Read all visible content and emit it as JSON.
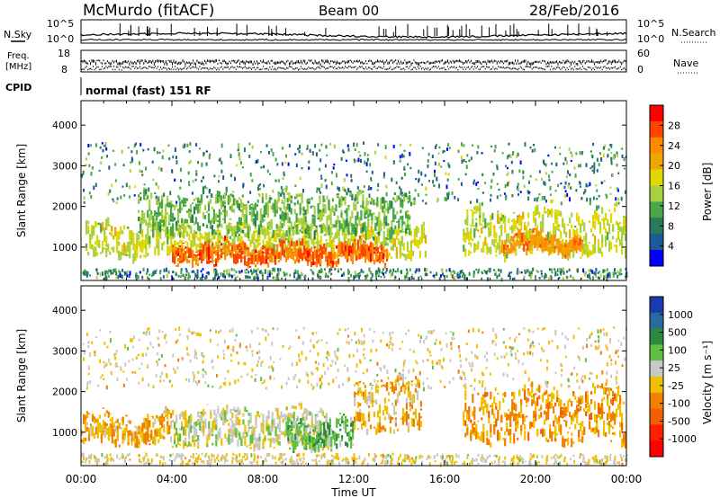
{
  "header": {
    "station": "McMurdo (fitACF)",
    "beam": "Beam 00",
    "date": "28/Feb/2016"
  },
  "panels": {
    "nsky": {
      "left_label": "N.Sky",
      "right_label": "N.Search",
      "left_ticks": [
        "10^5",
        "10^0"
      ],
      "right_ticks": [
        "10^5",
        "10^0"
      ]
    },
    "freq": {
      "left_label_1": "Freq.",
      "left_label_2": "[MHz]",
      "right_label": "Nave",
      "left_ticks": [
        "18",
        "8"
      ],
      "right_ticks": [
        "60",
        "0"
      ]
    },
    "cpid": {
      "label": "CPID",
      "value": "normal (fast) 151 RF"
    }
  },
  "power_colorbar": {
    "title": "Power [dB]",
    "ticks": [
      "28",
      "24",
      "20",
      "16",
      "12",
      "8",
      "4"
    ],
    "colors": [
      "#ff0000",
      "#ff4400",
      "#ff8c00",
      "#f0a500",
      "#e0d800",
      "#a8d040",
      "#48a848",
      "#2a7a5a",
      "#1c5a9a",
      "#0000ff"
    ]
  },
  "velocity_colorbar": {
    "title": "Velocity [m s⁻¹]",
    "ticks": [
      "1000",
      "500",
      "100",
      "25",
      "-25",
      "-100",
      "-500",
      "-1000"
    ],
    "colors": [
      "#1a3ab0",
      "#2a6aa0",
      "#2a8a40",
      "#60c040",
      "#c8c8c8",
      "#f0c000",
      "#f08000",
      "#f06000",
      "#ff2000",
      "#ff0000"
    ]
  },
  "chart_data": [
    {
      "type": "heatmap",
      "name": "power",
      "xlabel": "Time UT",
      "ylabel": "Slant Range [km]",
      "x_ticks": [
        "00:00",
        "04:00",
        "08:00",
        "12:00",
        "16:00",
        "20:00",
        "00:00"
      ],
      "y_ticks": [
        1000,
        2000,
        3000,
        4000
      ],
      "xlim_hours": [
        0,
        24
      ],
      "ylim_km": [
        180,
        4600
      ],
      "clim_db": [
        0,
        32
      ],
      "echo_regions": [
        {
          "t_start": 0.2,
          "t_end": 15.2,
          "r_min": 650,
          "r_max": 1450,
          "level_db": 16
        },
        {
          "t_start": 4.0,
          "t_end": 13.5,
          "r_min": 500,
          "r_max": 1000,
          "level_db": 27
        },
        {
          "t_start": 2.5,
          "t_end": 14.5,
          "r_min": 1200,
          "r_max": 2200,
          "level_db": 12
        },
        {
          "t_start": 16.8,
          "t_end": 24.0,
          "r_min": 700,
          "r_max": 1800,
          "level_db": 16
        },
        {
          "t_start": 18.5,
          "t_end": 22.0,
          "r_min": 800,
          "r_max": 1200,
          "level_db": 24
        }
      ]
    },
    {
      "type": "heatmap",
      "name": "velocity",
      "xlabel": "Time UT",
      "ylabel": "Slant Range [km]",
      "x_ticks": [
        "00:00",
        "04:00",
        "08:00",
        "12:00",
        "16:00",
        "20:00",
        "00:00"
      ],
      "y_ticks": [
        1000,
        2000,
        3000,
        4000
      ],
      "xlim_hours": [
        0,
        24
      ],
      "ylim_km": [
        180,
        4600
      ],
      "clim_ms": [
        -1000,
        1000
      ],
      "echo_regions": [
        {
          "t_start": 0.0,
          "t_end": 4.0,
          "r_min": 650,
          "r_max": 1300,
          "velocity_ms": -200
        },
        {
          "t_start": 4.0,
          "t_end": 11.0,
          "r_min": 550,
          "r_max": 1500,
          "velocity_ms": 80
        },
        {
          "t_start": 9.0,
          "t_end": 12.0,
          "r_min": 500,
          "r_max": 1200,
          "velocity_ms": 400
        },
        {
          "t_start": 12.0,
          "t_end": 15.0,
          "r_min": 900,
          "r_max": 2200,
          "velocity_ms": -150
        },
        {
          "t_start": 16.8,
          "t_end": 24.0,
          "r_min": 650,
          "r_max": 2000,
          "velocity_ms": -250
        }
      ]
    }
  ]
}
